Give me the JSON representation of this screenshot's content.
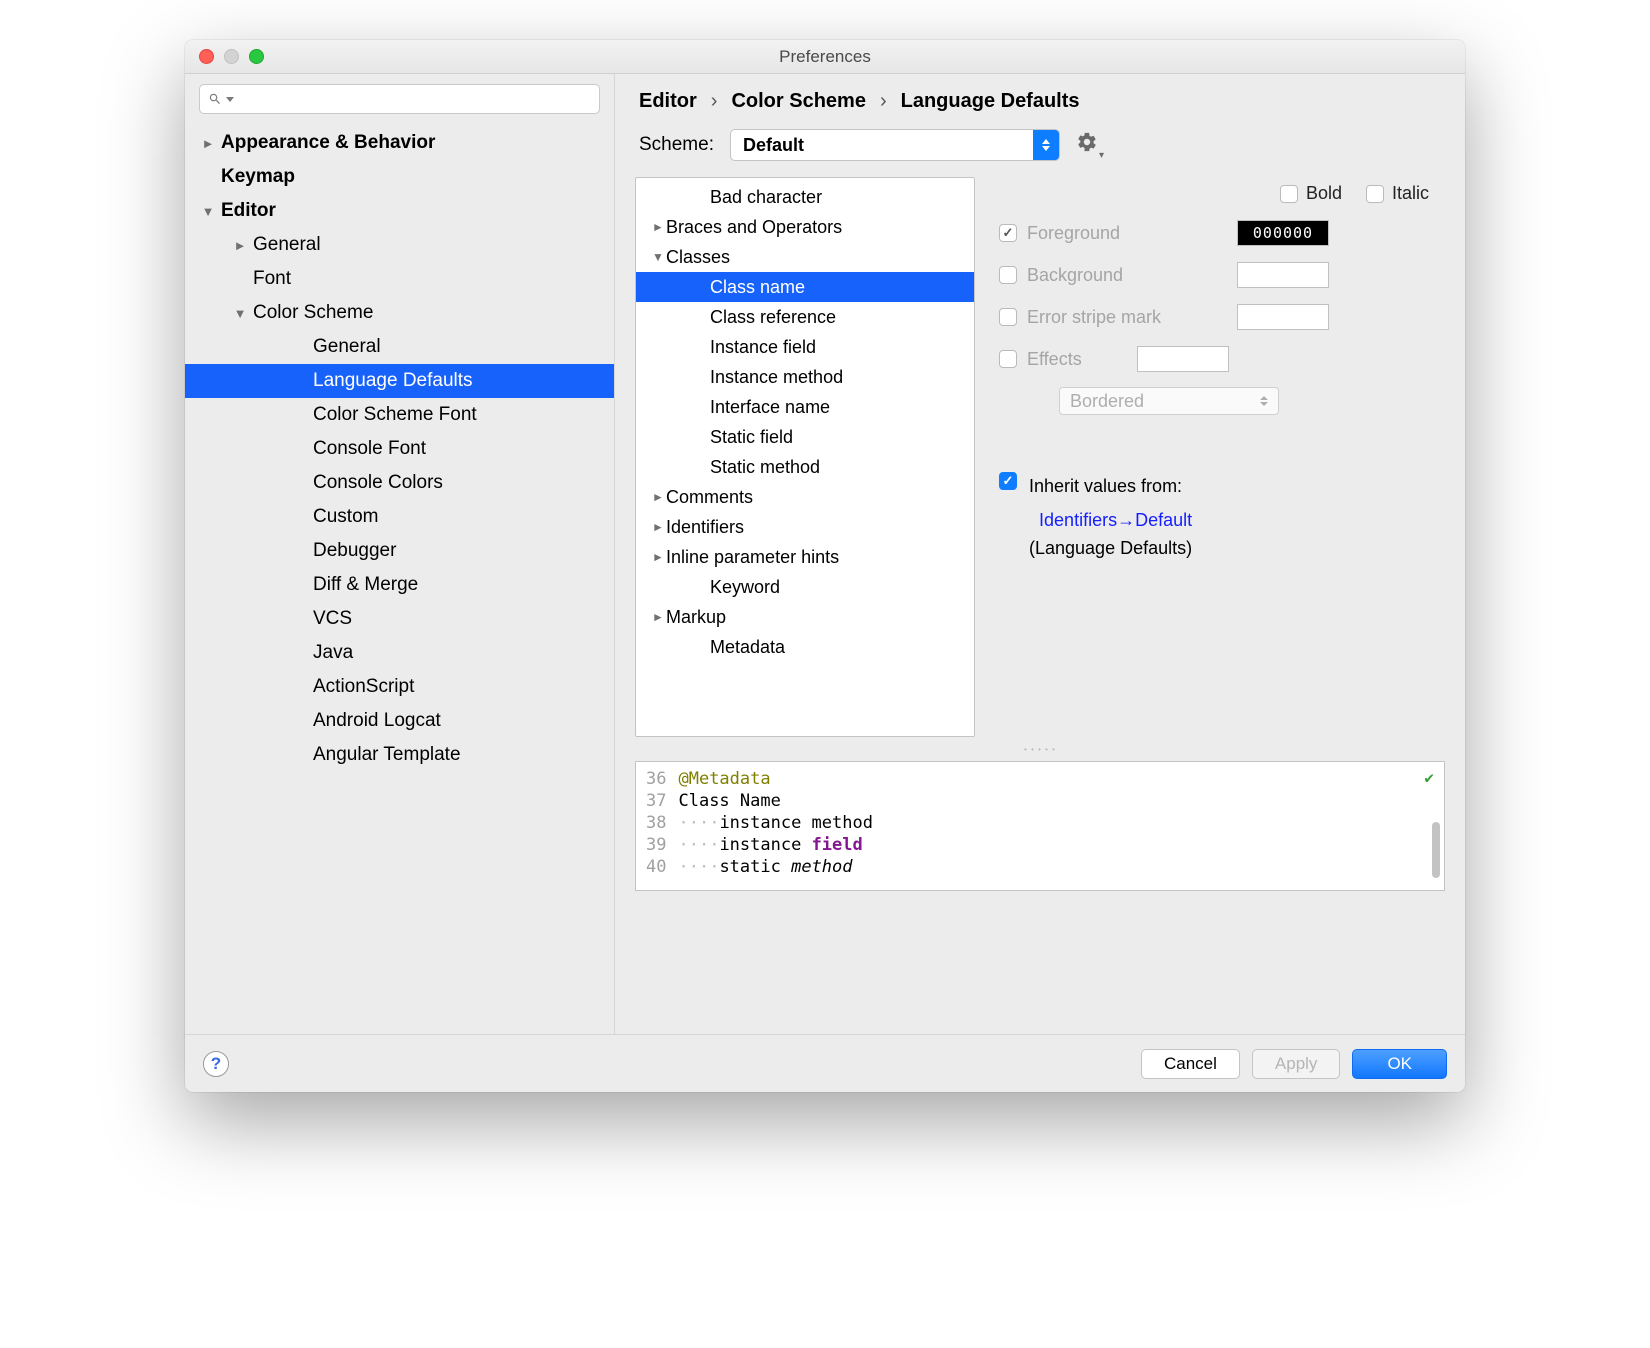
{
  "window": {
    "title": "Preferences"
  },
  "sidebar": {
    "search_placeholder": "",
    "items": [
      {
        "label": "Appearance & Behavior",
        "bold": true,
        "disc": "►",
        "indent": 1
      },
      {
        "label": "Keymap",
        "bold": true,
        "disc": "",
        "indent": 1,
        "pad": true
      },
      {
        "label": "Editor",
        "bold": true,
        "disc": "▼",
        "indent": 1
      },
      {
        "label": "General",
        "bold": false,
        "disc": "►",
        "indent": 2
      },
      {
        "label": "Font",
        "bold": false,
        "disc": "",
        "indent": 2,
        "pad": true
      },
      {
        "label": "Color Scheme",
        "bold": false,
        "disc": "▼",
        "indent": 2
      },
      {
        "label": "General",
        "bold": false,
        "disc": "",
        "indent": 4
      },
      {
        "label": "Language Defaults",
        "bold": false,
        "disc": "",
        "indent": 4,
        "selected": true
      },
      {
        "label": "Color Scheme Font",
        "bold": false,
        "disc": "",
        "indent": 4
      },
      {
        "label": "Console Font",
        "bold": false,
        "disc": "",
        "indent": 4
      },
      {
        "label": "Console Colors",
        "bold": false,
        "disc": "",
        "indent": 4
      },
      {
        "label": "Custom",
        "bold": false,
        "disc": "",
        "indent": 4
      },
      {
        "label": "Debugger",
        "bold": false,
        "disc": "",
        "indent": 4
      },
      {
        "label": "Diff & Merge",
        "bold": false,
        "disc": "",
        "indent": 4
      },
      {
        "label": "VCS",
        "bold": false,
        "disc": "",
        "indent": 4
      },
      {
        "label": "Java",
        "bold": false,
        "disc": "",
        "indent": 4
      },
      {
        "label": "ActionScript",
        "bold": false,
        "disc": "",
        "indent": 4
      },
      {
        "label": "Android Logcat",
        "bold": false,
        "disc": "",
        "indent": 4
      },
      {
        "label": "Angular Template",
        "bold": false,
        "disc": "",
        "indent": 4
      }
    ]
  },
  "breadcrumb": [
    "Editor",
    "Color Scheme",
    "Language Defaults"
  ],
  "scheme": {
    "label": "Scheme:",
    "value": "Default"
  },
  "attr_tree": [
    {
      "label": "Bad character",
      "disc": "",
      "indent": 2
    },
    {
      "label": "Braces and Operators",
      "disc": "►",
      "indent": 1
    },
    {
      "label": "Classes",
      "disc": "▼",
      "indent": 1
    },
    {
      "label": "Class name",
      "disc": "",
      "indent": 2,
      "selected": true
    },
    {
      "label": "Class reference",
      "disc": "",
      "indent": 2
    },
    {
      "label": "Instance field",
      "disc": "",
      "indent": 2
    },
    {
      "label": "Instance method",
      "disc": "",
      "indent": 2
    },
    {
      "label": "Interface name",
      "disc": "",
      "indent": 2
    },
    {
      "label": "Static field",
      "disc": "",
      "indent": 2
    },
    {
      "label": "Static method",
      "disc": "",
      "indent": 2
    },
    {
      "label": "Comments",
      "disc": "►",
      "indent": 1
    },
    {
      "label": "Identifiers",
      "disc": "►",
      "indent": 1
    },
    {
      "label": "Inline parameter hints",
      "disc": "►",
      "indent": 1
    },
    {
      "label": "Keyword",
      "disc": "",
      "indent": 2
    },
    {
      "label": "Markup",
      "disc": "►",
      "indent": 1
    },
    {
      "label": "Metadata",
      "disc": "",
      "indent": 2
    }
  ],
  "style": {
    "bold": "Bold",
    "italic": "Italic",
    "foreground": "Foreground",
    "foreground_hex": "000000",
    "background": "Background",
    "error_stripe": "Error stripe mark",
    "effects": "Effects",
    "effects_type": "Bordered",
    "inherit_label": "Inherit values from:",
    "inherit_link": "Identifiers→Default",
    "inherit_sub": "(Language Defaults)"
  },
  "preview": {
    "lines": [
      {
        "num": "36",
        "t1": "@Metadata",
        "cls": "anno"
      },
      {
        "num": "37",
        "t1": "Class Name"
      },
      {
        "num": "38",
        "dots": "····",
        "t1": "instance method"
      },
      {
        "num": "39",
        "dots": "····",
        "t1": "instance ",
        "t2": "field",
        "cls2": "field"
      },
      {
        "num": "40",
        "dots": "····",
        "t1": "static ",
        "t2": "method",
        "cls2": "ital"
      }
    ]
  },
  "footer": {
    "cancel": "Cancel",
    "apply": "Apply",
    "ok": "OK"
  },
  "colors": {
    "selection": "#1862fc",
    "accent": "#0f7dff",
    "window_bg": "#ececec"
  }
}
